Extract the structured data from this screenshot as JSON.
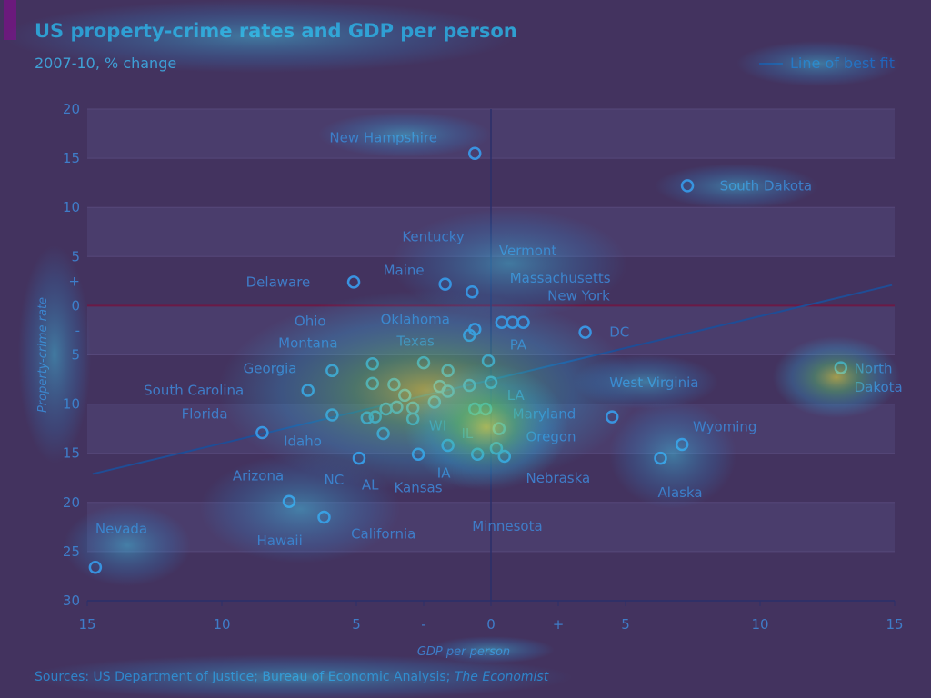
{
  "title": "US property-crime rates and GDP per person",
  "subtitle": "2007-10, % change",
  "legend": {
    "label": "Line of best fit"
  },
  "source": {
    "prefix": "Sources: US Department of Justice; Bureau of Economic Analysis; ",
    "italic": "The Economist"
  },
  "colors": {
    "background": "#43335f",
    "band": "#4a3d6c",
    "marker": "#3a92e0",
    "label": "#3f7cc8",
    "axis": "#2b2f6a",
    "zero_line": "#6b1a46",
    "fit_line": "#1f4d96"
  },
  "chart_data": {
    "type": "scatter",
    "title": "US property-crime rates and GDP per person",
    "subtitle": "2007-10, % change",
    "xlabel": "GDP per person",
    "ylabel": "Property-crime rate",
    "xlim": [
      -15,
      15
    ],
    "ylim": [
      -30,
      20
    ],
    "x_ticks": [
      {
        "value": -15,
        "label": "15"
      },
      {
        "value": -10,
        "label": "10"
      },
      {
        "value": -5,
        "label": "5"
      },
      {
        "value": -2.5,
        "label": "-"
      },
      {
        "value": 0,
        "label": "0"
      },
      {
        "value": 2.5,
        "label": "+"
      },
      {
        "value": 5,
        "label": "5"
      },
      {
        "value": 10,
        "label": "10"
      },
      {
        "value": 15,
        "label": "15"
      }
    ],
    "y_ticks": [
      {
        "value": 20,
        "label": "20"
      },
      {
        "value": 15,
        "label": "15"
      },
      {
        "value": 10,
        "label": "10"
      },
      {
        "value": 5,
        "label": "5"
      },
      {
        "value": 2.5,
        "label": "+"
      },
      {
        "value": 0,
        "label": "0"
      },
      {
        "value": -2.5,
        "label": "-"
      },
      {
        "value": -5,
        "label": "5"
      },
      {
        "value": -10,
        "label": "10"
      },
      {
        "value": -15,
        "label": "15"
      },
      {
        "value": -20,
        "label": "20"
      },
      {
        "value": -25,
        "label": "25"
      },
      {
        "value": -30,
        "label": "30"
      }
    ],
    "grid": true,
    "legend_position": "top-right",
    "best_fit": {
      "x": [
        -14.8,
        14.9
      ],
      "y": [
        -17.1,
        2.1
      ],
      "name": "Line of best fit"
    },
    "points": [
      {
        "x": -0.6,
        "y": 15.5
      },
      {
        "x": 7.3,
        "y": 12.2
      },
      {
        "x": -5.1,
        "y": 2.4
      },
      {
        "x": -1.7,
        "y": 2.2
      },
      {
        "x": -0.7,
        "y": 1.4
      },
      {
        "x": -0.6,
        "y": -2.4
      },
      {
        "x": -0.8,
        "y": -3.0
      },
      {
        "x": 0.4,
        "y": -1.7
      },
      {
        "x": 0.8,
        "y": -1.7
      },
      {
        "x": 1.2,
        "y": -1.7
      },
      {
        "x": 3.5,
        "y": -2.7
      },
      {
        "x": 13.0,
        "y": -6.3
      },
      {
        "x": 4.5,
        "y": -11.3
      },
      {
        "x": 7.1,
        "y": -14.1
      },
      {
        "x": 6.3,
        "y": -15.5
      },
      {
        "x": 0.3,
        "y": -12.5
      },
      {
        "x": 0.2,
        "y": -14.5
      },
      {
        "x": 0.5,
        "y": -15.3
      },
      {
        "x": -0.5,
        "y": -15.1
      },
      {
        "x": -2.5,
        "y": -5.8
      },
      {
        "x": -1.6,
        "y": -6.6
      },
      {
        "x": -0.1,
        "y": -5.6
      },
      {
        "x": 0.0,
        "y": -7.8
      },
      {
        "x": -0.8,
        "y": -8.1
      },
      {
        "x": -1.9,
        "y": -8.2
      },
      {
        "x": -1.6,
        "y": -8.7
      },
      {
        "x": -2.1,
        "y": -9.8
      },
      {
        "x": -0.6,
        "y": -10.5
      },
      {
        "x": -0.2,
        "y": -10.5
      },
      {
        "x": -4.4,
        "y": -5.9
      },
      {
        "x": -4.4,
        "y": -7.9
      },
      {
        "x": -3.6,
        "y": -8.0
      },
      {
        "x": -3.2,
        "y": -9.1
      },
      {
        "x": -2.9,
        "y": -10.4
      },
      {
        "x": -3.5,
        "y": -10.3
      },
      {
        "x": -3.9,
        "y": -10.5
      },
      {
        "x": -2.9,
        "y": -11.5
      },
      {
        "x": -4.3,
        "y": -11.3
      },
      {
        "x": -4.6,
        "y": -11.4
      },
      {
        "x": -4.0,
        "y": -13.0
      },
      {
        "x": -5.9,
        "y": -6.6
      },
      {
        "x": -6.8,
        "y": -8.6
      },
      {
        "x": -5.9,
        "y": -11.1
      },
      {
        "x": -8.5,
        "y": -12.9
      },
      {
        "x": -4.9,
        "y": -15.5
      },
      {
        "x": -2.7,
        "y": -15.1
      },
      {
        "x": -1.6,
        "y": -14.2
      },
      {
        "x": -7.5,
        "y": -19.9
      },
      {
        "x": -6.2,
        "y": -21.5
      },
      {
        "x": -14.7,
        "y": -26.6
      }
    ],
    "annotations": [
      {
        "text": "New Hampshire",
        "x": -6.0,
        "y": 17.1,
        "anchor": "start"
      },
      {
        "text": "South Dakota",
        "x": 8.5,
        "y": 12.2,
        "anchor": "start"
      },
      {
        "text": "Kentucky",
        "x": -3.3,
        "y": 7.0,
        "anchor": "start"
      },
      {
        "text": "Vermont",
        "x": 0.3,
        "y": 5.6,
        "anchor": "start"
      },
      {
        "text": "Maine",
        "x": -4.0,
        "y": 3.6,
        "anchor": "start"
      },
      {
        "text": "Massachusetts",
        "x": 0.7,
        "y": 2.8,
        "anchor": "start"
      },
      {
        "text": "Delaware",
        "x": -9.1,
        "y": 2.4,
        "anchor": "start"
      },
      {
        "text": "New York",
        "x": 2.1,
        "y": 1.0,
        "anchor": "start"
      },
      {
        "text": "Oklahoma",
        "x": -4.1,
        "y": -1.4,
        "anchor": "start"
      },
      {
        "text": "Ohio",
        "x": -7.3,
        "y": -1.6,
        "anchor": "start"
      },
      {
        "text": "DC",
        "x": 4.4,
        "y": -2.7,
        "anchor": "start"
      },
      {
        "text": "Texas",
        "x": -3.5,
        "y": -3.6,
        "anchor": "start"
      },
      {
        "text": "Montana",
        "x": -7.9,
        "y": -3.8,
        "anchor": "start"
      },
      {
        "text": "PA",
        "x": 0.7,
        "y": -4.0,
        "anchor": "start"
      },
      {
        "text": "Georgia",
        "x": -9.2,
        "y": -6.4,
        "anchor": "start"
      },
      {
        "text": "North",
        "x": 13.5,
        "y": -6.4,
        "anchor": "start"
      },
      {
        "text": "Dakota",
        "x": 13.5,
        "y": -8.3,
        "anchor": "start"
      },
      {
        "text": "West Virginia",
        "x": 4.4,
        "y": -7.8,
        "anchor": "start"
      },
      {
        "text": "South Carolina",
        "x": -12.9,
        "y": -8.6,
        "anchor": "start"
      },
      {
        "text": "LA",
        "x": 0.6,
        "y": -9.1,
        "anchor": "start"
      },
      {
        "text": "Florida",
        "x": -11.5,
        "y": -11.0,
        "anchor": "start"
      },
      {
        "text": "Maryland",
        "x": 0.8,
        "y": -11.0,
        "anchor": "start"
      },
      {
        "text": "WI",
        "x": -2.3,
        "y": -12.2,
        "anchor": "start"
      },
      {
        "text": "Wyoming",
        "x": 7.5,
        "y": -12.3,
        "anchor": "start"
      },
      {
        "text": "IL",
        "x": -1.1,
        "y": -13.0,
        "anchor": "start"
      },
      {
        "text": "Oregon",
        "x": 1.3,
        "y": -13.3,
        "anchor": "start"
      },
      {
        "text": "Idaho",
        "x": -7.7,
        "y": -13.8,
        "anchor": "start"
      },
      {
        "text": "IA",
        "x": -2.0,
        "y": -17.0,
        "anchor": "start"
      },
      {
        "text": "Arizona",
        "x": -9.6,
        "y": -17.3,
        "anchor": "start"
      },
      {
        "text": "NC",
        "x": -6.2,
        "y": -17.7,
        "anchor": "start"
      },
      {
        "text": "Nebraska",
        "x": 1.3,
        "y": -17.5,
        "anchor": "start"
      },
      {
        "text": "AL",
        "x": -4.8,
        "y": -18.2,
        "anchor": "start"
      },
      {
        "text": "Kansas",
        "x": -3.6,
        "y": -18.5,
        "anchor": "start"
      },
      {
        "text": "Alaska",
        "x": 6.2,
        "y": -19.0,
        "anchor": "start"
      },
      {
        "text": "Minnesota",
        "x": -0.7,
        "y": -22.4,
        "anchor": "start"
      },
      {
        "text": "Nevada",
        "x": -14.7,
        "y": -22.7,
        "anchor": "start"
      },
      {
        "text": "California",
        "x": -5.2,
        "y": -23.2,
        "anchor": "start"
      },
      {
        "text": "Hawaii",
        "x": -8.7,
        "y": -23.9,
        "anchor": "start"
      }
    ]
  }
}
